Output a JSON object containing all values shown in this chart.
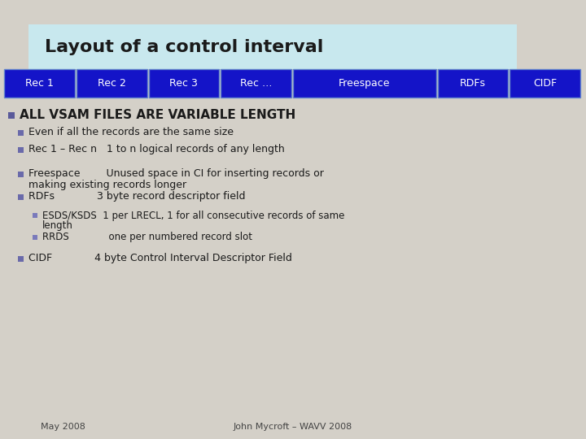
{
  "title": "Layout of a control interval",
  "title_bg_color": "#c8e8ee",
  "bg_color": "#d4d0c8",
  "bar_labels": [
    "Rec 1",
    "Rec 2",
    "Rec 3",
    "Rec …",
    "Freespace",
    "RDFs",
    "CIDF"
  ],
  "bar_color": "#1414c8",
  "bar_text_color": "#ffffff",
  "bar_widths": [
    1,
    1,
    1,
    1,
    2,
    1,
    1
  ],
  "bullet_color": "#5050a0",
  "main_bullet": "ALL VSAM FILES ARE VARIABLE LENGTH",
  "sub_bullets": [
    "Even if all the records are the same size",
    "Rec 1 – Rec n   1 to n logical records of any length",
    "Freespace        Unused space in CI for inserting records or\n        making existing records longer",
    "RDFs             3 byte record descriptor field"
  ],
  "sub_sub_bullets": [
    "ESDS/KSDS  1 per LRECL, 1 for all consecutive records of same\n           length",
    "RRDS             one per numbered record slot"
  ],
  "cidf_line": "CIDF             4 byte Control Interval Descriptor Field",
  "footer_left": "May 2008",
  "footer_center": "John Mycroft – WAVV 2008"
}
